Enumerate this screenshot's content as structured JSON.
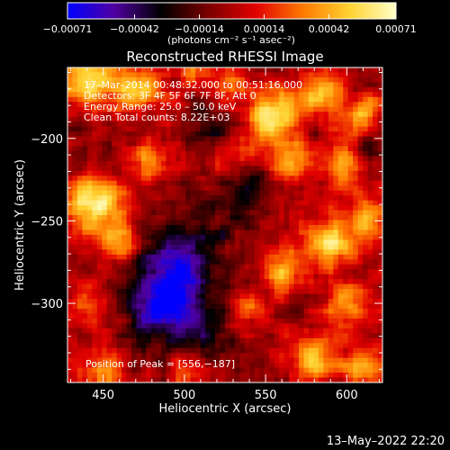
{
  "chart_data": {
    "type": "heatmap",
    "title": "Reconstructed RHESSI Image",
    "xlabel": "Heliocentric X (arcsec)",
    "ylabel": "Heliocentric Y (arcsec)",
    "x_range": [
      428,
      622
    ],
    "y_range": [
      -348,
      -157
    ],
    "x_ticks": [
      450,
      500,
      550,
      600
    ],
    "x_tick_labels": [
      "450",
      "500",
      "550",
      "600"
    ],
    "y_ticks": [
      -200,
      -250,
      -300
    ],
    "y_tick_labels": [
      "−200",
      "−250",
      "−300"
    ],
    "colorbar": {
      "range": [
        -0.00071,
        0.00071
      ],
      "ticks": [
        -0.00071,
        -0.00042,
        -0.00014,
        0.00014,
        0.00042,
        0.00071
      ],
      "tick_labels": [
        "−0.00071",
        "−0.00042",
        "−0.00014",
        "0.00014",
        "0.00042",
        "0.00071"
      ],
      "units_label": "(photons cm⁻² s⁻¹ asec⁻²)",
      "stops": [
        "#0000ff",
        "#5000a0",
        "#000000",
        "#7a0000",
        "#e10000",
        "#ff7800",
        "#ffd230",
        "#ffffc8"
      ]
    },
    "annotations": [
      "17–Mar–2014 00:48:32.000 to 00:51:16.000",
      "Detectors: 3F 4F 5F 6F 7F 8F, Att 0",
      "Energy Range: 25.0 – 50.0 keV",
      "Clean    Total counts: 8.22E+03"
    ],
    "peak_label": "Position of Peak = [556,−187]",
    "peak_position": [
      556,
      -187
    ],
    "blobs": [
      {
        "x": 440,
        "y": -165,
        "v": 0.0006,
        "r": 12
      },
      {
        "x": 470,
        "y": -170,
        "v": 0.0005,
        "r": 10
      },
      {
        "x": 505,
        "y": -160,
        "v": 0.0003,
        "r": 9
      },
      {
        "x": 530,
        "y": -170,
        "v": 0.0003,
        "r": 8
      },
      {
        "x": 556,
        "y": -187,
        "v": 0.00071,
        "r": 11
      },
      {
        "x": 585,
        "y": -172,
        "v": 0.0005,
        "r": 10
      },
      {
        "x": 612,
        "y": -185,
        "v": 0.0004,
        "r": 9
      },
      {
        "x": 565,
        "y": -215,
        "v": 0.0004,
        "r": 9
      },
      {
        "x": 532,
        "y": -210,
        "v": 0.0002,
        "r": 8
      },
      {
        "x": 600,
        "y": -215,
        "v": 0.00045,
        "r": 10
      },
      {
        "x": 445,
        "y": -240,
        "v": 0.00065,
        "r": 12
      },
      {
        "x": 478,
        "y": -215,
        "v": 0.0004,
        "r": 9
      },
      {
        "x": 460,
        "y": -262,
        "v": 0.0004,
        "r": 9
      },
      {
        "x": 440,
        "y": -300,
        "v": 0.0003,
        "r": 10
      },
      {
        "x": 450,
        "y": -340,
        "v": 0.0004,
        "r": 10
      },
      {
        "x": 500,
        "y": -342,
        "v": 0.0003,
        "r": 9
      },
      {
        "x": 540,
        "y": -305,
        "v": 0.0003,
        "r": 8
      },
      {
        "x": 560,
        "y": -280,
        "v": 0.0005,
        "r": 9
      },
      {
        "x": 590,
        "y": -262,
        "v": 0.0006,
        "r": 11
      },
      {
        "x": 612,
        "y": -250,
        "v": 0.0005,
        "r": 9
      },
      {
        "x": 600,
        "y": -300,
        "v": 0.00045,
        "r": 10
      },
      {
        "x": 580,
        "y": -335,
        "v": 0.0005,
        "r": 11
      },
      {
        "x": 612,
        "y": -340,
        "v": 0.0004,
        "r": 9
      },
      {
        "x": 522,
        "y": -248,
        "v": -0.00015,
        "r": 12
      },
      {
        "x": 495,
        "y": -280,
        "v": -0.0006,
        "r": 16
      },
      {
        "x": 485,
        "y": -305,
        "v": -0.0005,
        "r": 13
      },
      {
        "x": 510,
        "y": -315,
        "v": -0.0003,
        "r": 12
      },
      {
        "x": 540,
        "y": -230,
        "v": -0.0002,
        "r": 10
      },
      {
        "x": 520,
        "y": -190,
        "v": -0.0002,
        "r": 10
      },
      {
        "x": 612,
        "y": -210,
        "v": -0.0003,
        "r": 6
      }
    ]
  },
  "footer": {
    "date": "13–May–2022 22:20"
  }
}
